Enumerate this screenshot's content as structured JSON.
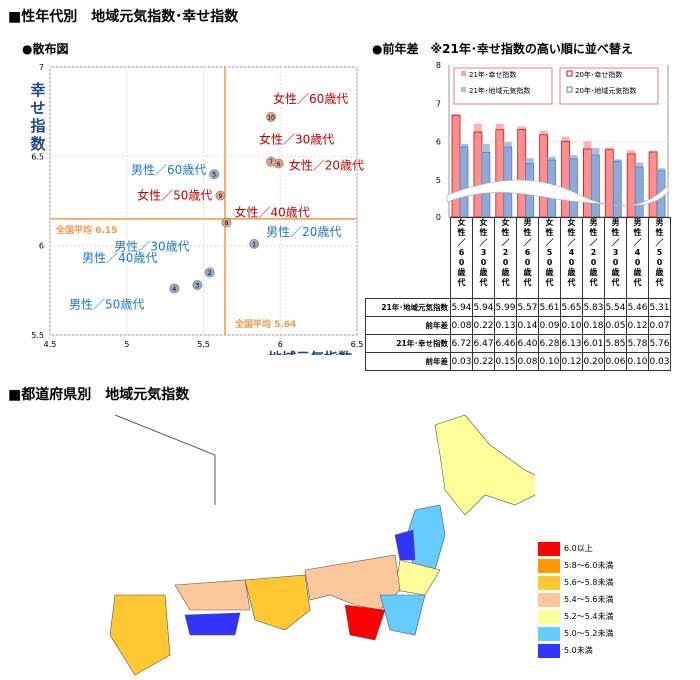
{
  "headings": {
    "main": "■性年代別　地域元気指数･幸せ指数",
    "scatter": "●散布図",
    "bar": "●前年差　※21年･幸せ指数の高い順に並べ替え",
    "map": "■都道府県別　地域元気指数"
  },
  "chart_data": [
    {
      "type": "scatter",
      "xlabel": "地域元気指数",
      "ylabel": "幸せ指数",
      "xlim": [
        4.5,
        6.5
      ],
      "ylim": [
        5.5,
        7
      ],
      "xticks": [
        "4.5",
        "5",
        "5.5",
        "6",
        "6.5"
      ],
      "yticks": [
        "5.5",
        "6",
        "6.5",
        "7"
      ],
      "avg_x": {
        "label": "全国平均",
        "value": 5.64
      },
      "avg_y": {
        "label": "全国平均",
        "value": 6.15
      },
      "points": [
        {
          "n": "1",
          "label": "男性／20歳代",
          "x": 5.83,
          "y": 6.01,
          "group": "male"
        },
        {
          "n": "2",
          "label": "男性／30歳代",
          "x": 5.54,
          "y": 5.85,
          "group": "male"
        },
        {
          "n": "3",
          "label": "男性／40歳代",
          "x": 5.46,
          "y": 5.78,
          "group": "male"
        },
        {
          "n": "4",
          "label": "男性／50歳代",
          "x": 5.31,
          "y": 5.76,
          "group": "male"
        },
        {
          "n": "5",
          "label": "男性／60歳代",
          "x": 5.57,
          "y": 6.4,
          "group": "male"
        },
        {
          "n": "6",
          "label": "女性／20歳代",
          "x": 5.99,
          "y": 6.46,
          "group": "female"
        },
        {
          "n": "7",
          "label": "女性／30歳代",
          "x": 5.94,
          "y": 6.47,
          "group": "female"
        },
        {
          "n": "8",
          "label": "女性／40歳代",
          "x": 5.65,
          "y": 6.13,
          "group": "female"
        },
        {
          "n": "9",
          "label": "女性／50歳代",
          "x": 5.61,
          "y": 6.28,
          "group": "female"
        },
        {
          "n": "10",
          "label": "女性／60歳代",
          "x": 5.94,
          "y": 6.72,
          "group": "female"
        }
      ]
    },
    {
      "type": "bar",
      "ylim": [
        0,
        8
      ],
      "yticks": [
        "0",
        "5",
        "6",
        "7",
        "8"
      ],
      "categories": [
        "女性／60歳代",
        "女性／30歳代",
        "女性／20歳代",
        "男性／60歳代",
        "女性／50歳代",
        "女性／40歳代",
        "男性／20歳代",
        "男性／30歳代",
        "男性／40歳代",
        "男性／50歳代"
      ],
      "legend": [
        "21年･幸せ指数",
        "21年･地域元気指数",
        "20年･幸せ指数",
        "20年･地域元気指数"
      ],
      "table": [
        {
          "label": "21年･地域元気指数",
          "values": [
            "5.94",
            "5.94",
            "5.99",
            "5.57",
            "5.61",
            "5.65",
            "5.83",
            "5.54",
            "5.46",
            "5.31"
          ]
        },
        {
          "label": "前年差",
          "values": [
            "0.08",
            "0.22",
            "0.13",
            "0.14",
            "0.09",
            "0.10",
            "0.18",
            "0.05",
            "0.12",
            "0.07"
          ]
        },
        {
          "label": "21年･幸せ指数",
          "values": [
            "6.72",
            "6.47",
            "6.46",
            "6.40",
            "6.28",
            "6.13",
            "6.01",
            "5.85",
            "5.78",
            "5.76"
          ]
        },
        {
          "label": "前年差",
          "values": [
            "0.03",
            "0.22",
            "0.15",
            "0.08",
            "0.10",
            "0.12",
            "0.20",
            "0.06",
            "0.10",
            "0.03"
          ]
        }
      ]
    }
  ],
  "map_legend": [
    {
      "label": "6.0以上",
      "color": "#ff0000"
    },
    {
      "label": "5.8～6.0未満",
      "color": "#ff9900"
    },
    {
      "label": "5.6～5.8未満",
      "color": "#ffc832"
    },
    {
      "label": "5.4～5.6未満",
      "color": "#fcc89b"
    },
    {
      "label": "5.2～5.4未満",
      "color": "#ffff99"
    },
    {
      "label": "5.0～5.2未満",
      "color": "#66ccff"
    },
    {
      "label": "5.0未満",
      "color": "#3333ff"
    }
  ]
}
